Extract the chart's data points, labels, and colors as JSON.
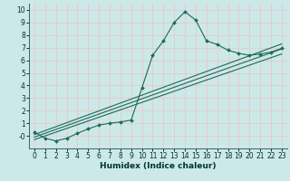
{
  "xlabel": "Humidex (Indice chaleur)",
  "ylabel": "",
  "bg_color": "#cde8e8",
  "grid_color": "#e8c8c8",
  "line_color": "#1a6b5a",
  "xlim": [
    -0.5,
    23.5
  ],
  "ylim": [
    -1.0,
    10.5
  ],
  "xticks": [
    0,
    1,
    2,
    3,
    4,
    5,
    6,
    7,
    8,
    9,
    10,
    11,
    12,
    13,
    14,
    15,
    16,
    17,
    18,
    19,
    20,
    21,
    22,
    23
  ],
  "yticks": [
    0,
    1,
    2,
    3,
    4,
    5,
    6,
    7,
    8,
    9,
    10
  ],
  "series": [
    {
      "x": [
        0,
        1,
        2,
        3,
        4,
        5,
        6,
        7,
        8,
        9,
        10,
        11,
        12,
        13,
        14,
        15,
        16,
        17,
        18,
        19,
        20,
        21,
        22,
        23
      ],
      "y": [
        0.3,
        -0.2,
        -0.4,
        -0.2,
        0.2,
        0.55,
        0.85,
        1.0,
        1.1,
        1.25,
        3.8,
        6.4,
        7.55,
        9.0,
        9.85,
        9.2,
        7.55,
        7.25,
        6.8,
        6.55,
        6.4,
        6.5,
        6.65,
        6.95
      ],
      "marker": "D",
      "markersize": 2.0
    },
    {
      "x": [
        0,
        23
      ],
      "y": [
        -0.3,
        6.5
      ],
      "marker": null
    },
    {
      "x": [
        0,
        23
      ],
      "y": [
        -0.1,
        6.9
      ],
      "marker": null
    },
    {
      "x": [
        0,
        23
      ],
      "y": [
        0.1,
        7.3
      ],
      "marker": null
    }
  ]
}
